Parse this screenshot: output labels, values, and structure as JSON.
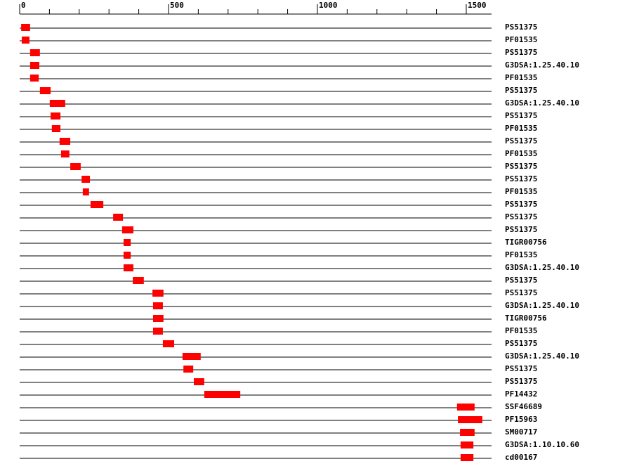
{
  "chart_data": {
    "type": "range",
    "categories": [
      "PS51375",
      "PF01535",
      "PS51375",
      "G3DSA:1.25.40.10",
      "PF01535",
      "PS51375",
      "G3DSA:1.25.40.10",
      "PS51375",
      "PF01535",
      "PS51375",
      "PF01535",
      "PS51375",
      "PS51375",
      "PF01535",
      "PS51375",
      "PS51375",
      "PS51375",
      "TIGR00756",
      "PF01535",
      "G3DSA:1.25.40.10",
      "PS51375",
      "PS51375",
      "G3DSA:1.25.40.10",
      "TIGR00756",
      "PF01535",
      "PS51375",
      "G3DSA:1.25.40.10",
      "PS51375",
      "PS51375",
      "PF14432",
      "SSF46689",
      "PF15963",
      "SM00717",
      "G3DSA:1.10.10.60",
      "cd00167"
    ],
    "starts": [
      5,
      7,
      35,
      35,
      35,
      68,
      101,
      104,
      108,
      134,
      139,
      170,
      208,
      212,
      238,
      314,
      344,
      349,
      349,
      349,
      380,
      446,
      448,
      448,
      448,
      481,
      547,
      550,
      585,
      620,
      1469,
      1472,
      1479,
      1481,
      1481
    ],
    "ends": [
      35,
      33,
      68,
      66,
      64,
      104,
      153,
      137,
      137,
      170,
      167,
      205,
      236,
      233,
      281,
      347,
      382,
      373,
      373,
      382,
      417,
      483,
      481,
      483,
      481,
      519,
      608,
      583,
      620,
      741,
      1528,
      1554,
      1528,
      1524,
      1524
    ],
    "color": "#ff0000",
    "xlim": [
      0,
      1585
    ],
    "xticks": [
      0,
      500,
      1000,
      1500
    ],
    "xminor_ticks": [
      100,
      200,
      300,
      400,
      600,
      700,
      800,
      900,
      1100,
      1200,
      1300,
      1400
    ]
  }
}
